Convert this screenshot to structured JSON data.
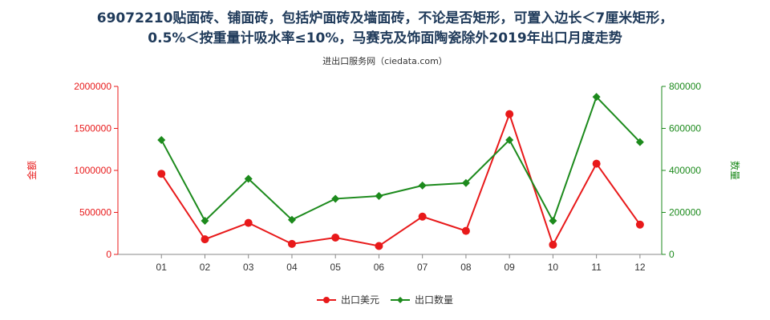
{
  "title_line1": "69072210贴面砖、铺面砖，包括炉面砖及墙面砖，不论是否矩形，可置入边长＜7厘米矩形，",
  "title_line2": "0.5%＜按重量计吸水率≤10%，马赛克及饰面陶瓷除外2019年出口月度走势",
  "source": "进出口服务网（ciedata.com）",
  "colors": {
    "left_axis": "#e8191a",
    "right_axis": "#1c8a1c",
    "series1": "#e8191a",
    "series2": "#1c8a1c"
  },
  "chart_data": {
    "type": "line",
    "categories": [
      "01",
      "02",
      "03",
      "04",
      "05",
      "06",
      "07",
      "08",
      "09",
      "10",
      "11",
      "12"
    ],
    "y_left": {
      "label": "金额",
      "ticks": [
        "0",
        "500000",
        "1000000",
        "1500000",
        "2000000"
      ],
      "ylim": [
        0,
        2000000
      ]
    },
    "y_right": {
      "label": "数量",
      "ticks": [
        "0",
        "200000",
        "400000",
        "600000",
        "800000"
      ],
      "ylim": [
        0,
        800000
      ]
    },
    "series": [
      {
        "name": "出口美元",
        "axis": "left",
        "values": [
          960000,
          180000,
          375000,
          125000,
          200000,
          100000,
          450000,
          280000,
          1670000,
          115000,
          1080000,
          355000
        ]
      },
      {
        "name": "出口数量",
        "axis": "right",
        "values": [
          545000,
          160000,
          360000,
          165000,
          265000,
          278000,
          328000,
          340000,
          545000,
          160000,
          750000,
          535000
        ]
      }
    ],
    "legend_position": "bottom-center",
    "grid": false
  }
}
